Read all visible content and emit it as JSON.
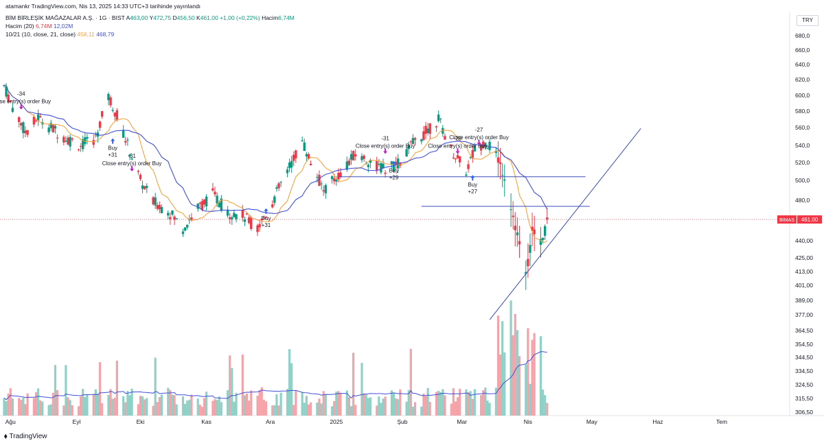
{
  "header": {
    "published": "atamankr TradingView.com, Nis 13, 2025 14:33 UTC+3 tarihinde yayınlandı",
    "symbol": "BİM BİRLEŞİK MAĞAZALAR A.Ş. · 1G · BIST",
    "ohlc": [
      {
        "k": "A",
        "v": "463,00"
      },
      {
        "k": "Y",
        "v": "472,75"
      },
      {
        "k": "D",
        "v": "456,50"
      },
      {
        "k": "K",
        "v": "461,00"
      }
    ],
    "change": "+1,00 (+0,22%)",
    "volume_label": "Hacim",
    "volume_value": "6,74M",
    "vol_ind_name": "Hacim (20)",
    "vol_ind_v1": "6,74M",
    "vol_ind_v2": "12,02M",
    "ma_ind_name": "10/21 (10, close, 21, close)",
    "ma_ind_v1": "458,11",
    "ma_ind_v2": "468,79",
    "currency": "TRY",
    "brand": "TradingView"
  },
  "colors": {
    "up": "#089981",
    "down": "#f23645",
    "vol_up": "#8fd1c7",
    "vol_down": "#f5a3a8",
    "ma_fast": "#f7a23b",
    "ma_slow": "#3f4fd6",
    "trendline": "#3a4bb5",
    "signal_buy": "#2962ff",
    "signal_close": "#c020c8",
    "price_tag": "#f23645"
  },
  "chart_data": {
    "type": "candlestick",
    "y_ticks": [
      "680,0",
      "660,0",
      "640,0",
      "620,0",
      "600,0",
      "580,0",
      "560,0",
      "540,0",
      "520,0",
      "500,0",
      "480,0",
      "440,00",
      "425,00",
      "413,00",
      "401,00",
      "389,00",
      "377,00",
      "364,50",
      "354,50",
      "344,50",
      "334,50",
      "324,50",
      "315,50",
      "306,50"
    ],
    "x_ticks": [
      {
        "label": "Ağu",
        "date": "2024-08-01"
      },
      {
        "label": "Eyl",
        "date": "2024-09-01"
      },
      {
        "label": "Eki",
        "date": "2024-10-01"
      },
      {
        "label": "Kas",
        "date": "2024-11-01"
      },
      {
        "label": "Ara",
        "date": "2024-12-01"
      },
      {
        "label": "2025",
        "date": "2025-01-01"
      },
      {
        "label": "Şub",
        "date": "2025-02-01"
      },
      {
        "label": "Mar",
        "date": "2025-03-01"
      },
      {
        "label": "Nis",
        "date": "2025-04-01"
      },
      {
        "label": "May",
        "date": "2025-05-01"
      },
      {
        "label": "Haz",
        "date": "2025-06-01"
      },
      {
        "label": "Tem",
        "date": "2025-07-01"
      }
    ],
    "last_price_label": "461,00",
    "symbol_tag": "BIMAS",
    "price_path": [
      [
        "2024-07-29",
        612
      ],
      [
        "2024-08-02",
        585
      ],
      [
        "2024-08-08",
        555
      ],
      [
        "2024-08-14",
        572
      ],
      [
        "2024-08-20",
        560
      ],
      [
        "2024-08-27",
        548
      ],
      [
        "2024-09-03",
        540
      ],
      [
        "2024-09-10",
        548
      ],
      [
        "2024-09-16",
        598
      ],
      [
        "2024-09-20",
        575
      ],
      [
        "2024-09-25",
        540
      ],
      [
        "2024-10-01",
        500
      ],
      [
        "2024-10-07",
        478
      ],
      [
        "2024-10-14",
        470
      ],
      [
        "2024-10-21",
        452
      ],
      [
        "2024-10-28",
        472
      ],
      [
        "2024-11-04",
        486
      ],
      [
        "2024-11-11",
        468
      ],
      [
        "2024-11-18",
        465
      ],
      [
        "2024-11-25",
        452
      ],
      [
        "2024-12-02",
        478
      ],
      [
        "2024-12-09",
        510
      ],
      [
        "2024-12-16",
        545
      ],
      [
        "2024-12-20",
        520
      ],
      [
        "2024-12-26",
        490
      ],
      [
        "2025-01-03",
        508
      ],
      [
        "2025-01-10",
        530
      ],
      [
        "2025-01-17",
        520
      ],
      [
        "2025-01-24",
        512
      ],
      [
        "2025-01-31",
        520
      ],
      [
        "2025-02-05",
        540
      ],
      [
        "2025-02-12",
        555
      ],
      [
        "2025-02-18",
        570
      ],
      [
        "2025-02-24",
        535
      ],
      [
        "2025-03-03",
        510
      ],
      [
        "2025-03-07",
        535
      ],
      [
        "2025-03-12",
        545
      ],
      [
        "2025-03-17",
        530
      ],
      [
        "2025-03-21",
        505
      ],
      [
        "2025-03-26",
        455
      ],
      [
        "2025-03-31",
        408
      ],
      [
        "2025-04-03",
        448
      ],
      [
        "2025-04-07",
        440
      ],
      [
        "2025-04-11",
        461
      ]
    ],
    "trendlines": [
      {
        "from": [
          "2025-01-02",
          504
        ],
        "to": [
          "2025-04-28",
          504
        ]
      },
      {
        "from": [
          "2025-02-10",
          474
        ],
        "to": [
          "2025-04-30",
          474
        ]
      },
      {
        "from": [
          "2025-03-14",
          373
        ],
        "to": [
          "2025-05-24",
          559
        ]
      }
    ],
    "signals": [
      {
        "date": "2024-08-06",
        "price": 582,
        "kind": "close",
        "labels": [
          "-34",
          "Close entry(s) order Buy"
        ]
      },
      {
        "date": "2024-09-18",
        "price": 548,
        "kind": "buy",
        "labels": [
          "Buy",
          "+31"
        ]
      },
      {
        "date": "2024-09-27",
        "price": 510,
        "kind": "close",
        "labels": [
          "-31",
          "Close entry(s) order Buy"
        ]
      },
      {
        "date": "2024-11-29",
        "price": 472,
        "kind": "buy",
        "labels": [
          "Buy",
          "+31"
        ]
      },
      {
        "date": "2025-01-24",
        "price": 530,
        "kind": "close",
        "labels": [
          "-31",
          "Close entry(s) order Buy"
        ]
      },
      {
        "date": "2025-01-28",
        "price": 522,
        "kind": "buy",
        "labels": [
          "Buy",
          "+29"
        ]
      },
      {
        "date": "2025-02-27",
        "price": 530,
        "kind": "close",
        "labels": [
          "-29",
          "Close entry(s) order Buy"
        ]
      },
      {
        "date": "2025-03-06",
        "price": 506,
        "kind": "buy",
        "labels": [
          "Buy",
          "+27"
        ]
      },
      {
        "date": "2025-03-09",
        "price": 540,
        "kind": "close",
        "labels": [
          "-27",
          "Close entry(s) order Buy"
        ]
      }
    ]
  }
}
